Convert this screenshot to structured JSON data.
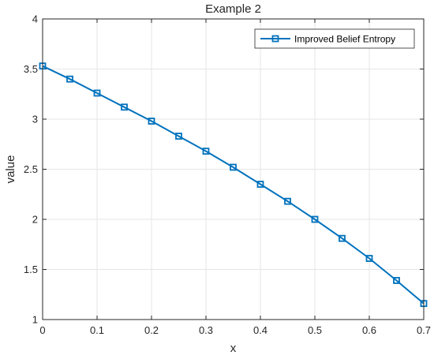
{
  "chart_data": {
    "type": "line",
    "title": "Example 2",
    "xlabel": "x",
    "ylabel": "value",
    "xlim": [
      0,
      0.7
    ],
    "ylim": [
      1,
      4
    ],
    "xticks": [
      "0",
      "0.1",
      "0.2",
      "0.3",
      "0.4",
      "0.5",
      "0.6",
      "0.7"
    ],
    "yticks": [
      "1",
      "1.5",
      "2",
      "2.5",
      "3",
      "3.5",
      "4"
    ],
    "grid": true,
    "legend_position": "top-right",
    "series": [
      {
        "name": "Improved Belief Entropy",
        "color": "#0072BD",
        "marker": "square",
        "x": [
          0,
          0.05,
          0.1,
          0.15,
          0.2,
          0.25,
          0.3,
          0.35,
          0.4,
          0.45,
          0.5,
          0.55,
          0.6,
          0.65,
          0.7
        ],
        "y": [
          3.53,
          3.4,
          3.26,
          3.12,
          2.98,
          2.83,
          2.68,
          2.52,
          2.35,
          2.18,
          2.0,
          1.81,
          1.61,
          1.39,
          1.16
        ]
      }
    ]
  }
}
